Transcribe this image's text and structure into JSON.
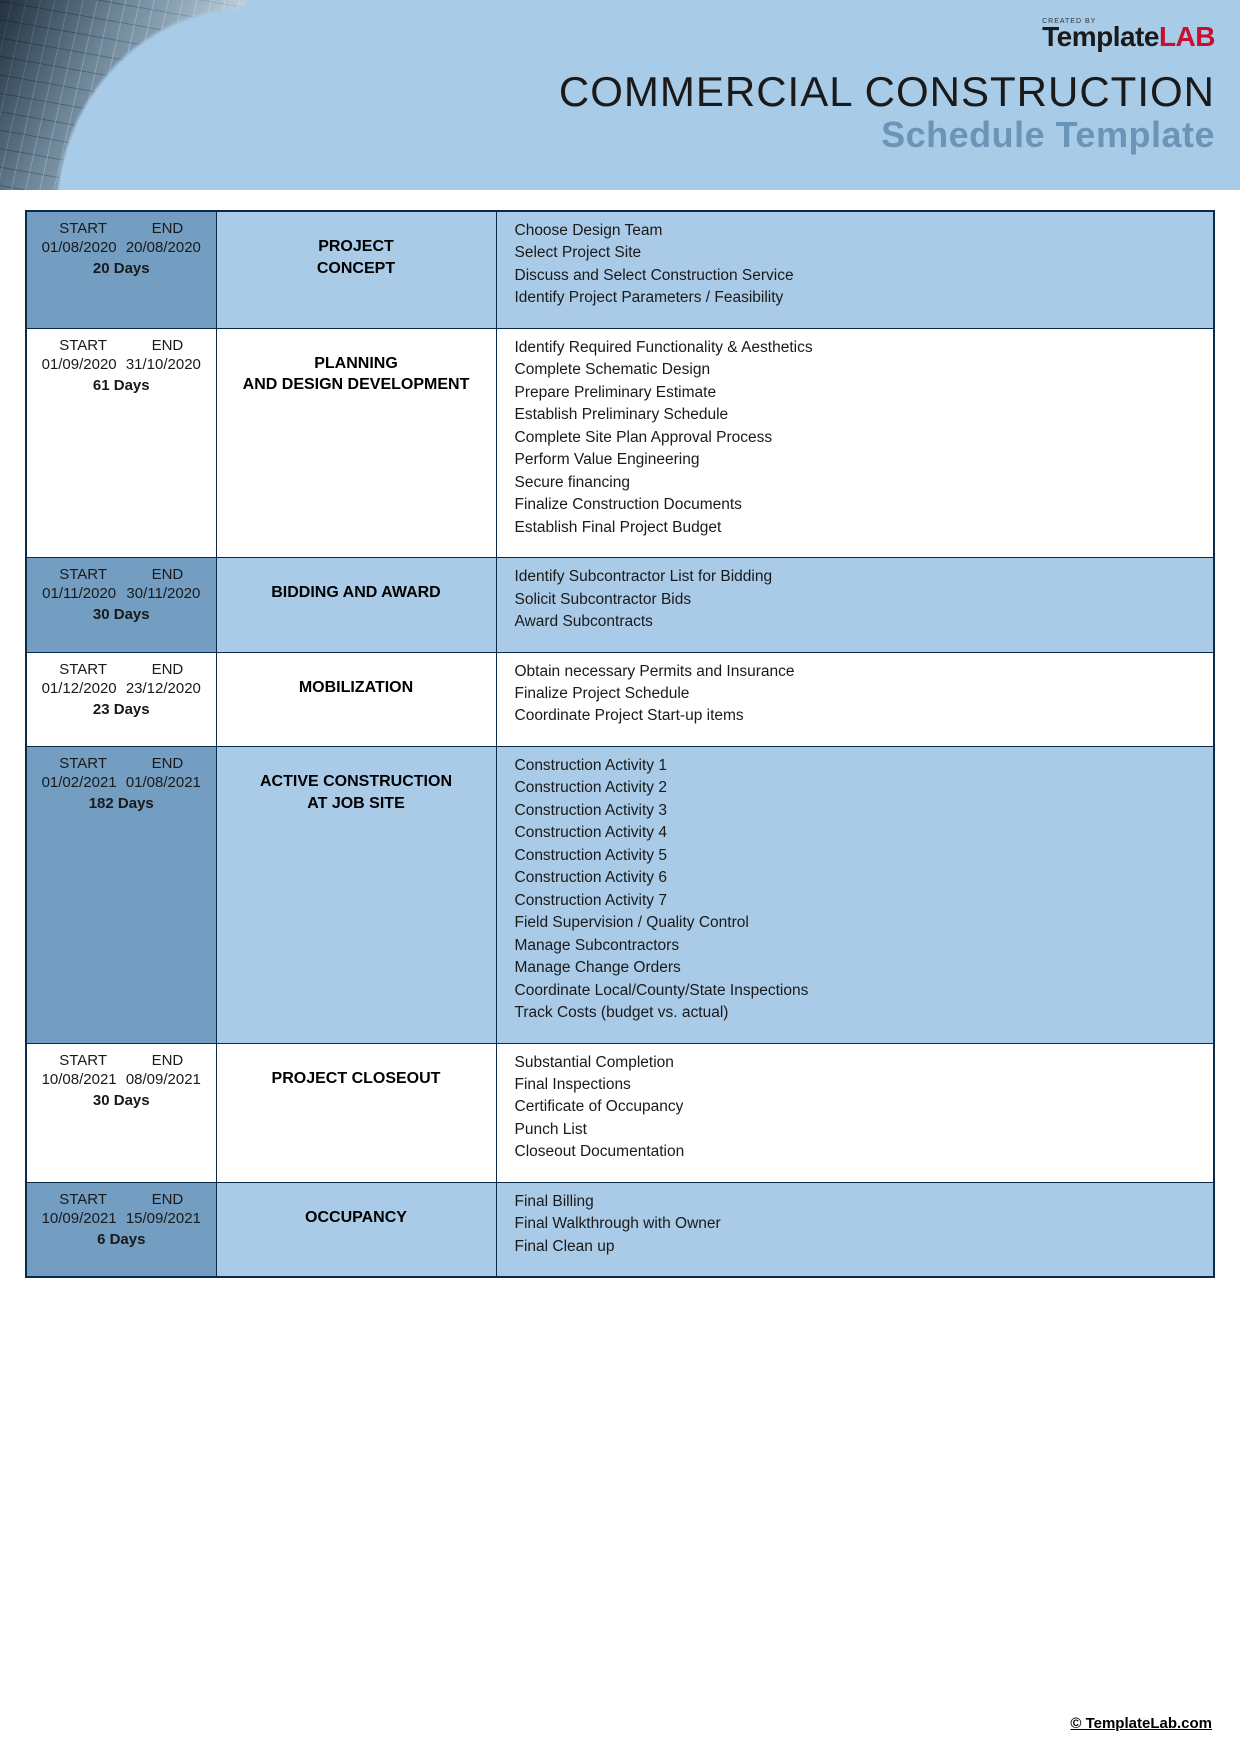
{
  "brand": {
    "created": "CREATED BY",
    "name_a": "Template",
    "name_b": "LAB"
  },
  "title": {
    "line1": "COMMERCIAL CONSTRUCTION",
    "line2": "Schedule Template"
  },
  "labels": {
    "start": "START",
    "end": "END"
  },
  "colors": {
    "header_bg": "#a8cbe8",
    "shade_dates": "#739dc1",
    "shade_cells": "#a9cbe7",
    "border": "#0a2a4a",
    "accent_text": "#6a95b8",
    "brand_red": "#c8102e"
  },
  "phases": [
    {
      "shaded": true,
      "start": "01/08/2020",
      "end": "20/08/2020",
      "days": "20 Days",
      "name": "PROJECT\nCONCEPT",
      "tasks": [
        "Choose Design Team",
        "Select Project Site",
        "Discuss and Select Construction Service",
        "Identify Project Parameters / Feasibility"
      ]
    },
    {
      "shaded": false,
      "start": "01/09/2020",
      "end": "31/10/2020",
      "days": "61 Days",
      "name": "PLANNING\nAND DESIGN DEVELOPMENT",
      "tasks": [
        "Identify Required Functionality & Aesthetics",
        "Complete Schematic Design",
        "Prepare Preliminary Estimate",
        "Establish Preliminary Schedule",
        "Complete Site Plan Approval Process",
        "Perform Value Engineering",
        "Secure financing",
        "Finalize Construction Documents",
        "Establish Final Project Budget"
      ]
    },
    {
      "shaded": true,
      "start": "01/11/2020",
      "end": "30/11/2020",
      "days": "30 Days",
      "name": "BIDDING AND AWARD",
      "tasks": [
        "Identify Subcontractor List for Bidding",
        "Solicit Subcontractor Bids",
        "Award Subcontracts"
      ]
    },
    {
      "shaded": false,
      "start": "01/12/2020",
      "end": "23/12/2020",
      "days": "23 Days",
      "name": "MOBILIZATION",
      "tasks": [
        "Obtain necessary Permits and Insurance",
        "Finalize Project Schedule",
        "Coordinate Project Start-up items"
      ]
    },
    {
      "shaded": true,
      "start": "01/02/2021",
      "end": "01/08/2021",
      "days": "182 Days",
      "name": "ACTIVE CONSTRUCTION\nAT JOB SITE",
      "tasks": [
        "Construction Activity 1",
        "Construction Activity 2",
        "Construction Activity 3",
        "Construction Activity 4",
        "Construction Activity 5",
        "Construction Activity 6",
        "Construction Activity 7",
        "Field Supervision / Quality Control",
        "Manage Subcontractors",
        "Manage Change Orders",
        "Coordinate Local/County/State Inspections",
        "Track Costs (budget vs. actual)"
      ]
    },
    {
      "shaded": false,
      "start": "10/08/2021",
      "end": "08/09/2021",
      "days": "30 Days",
      "name": "PROJECT CLOSEOUT",
      "tasks": [
        "Substantial Completion",
        "Final Inspections",
        "Certificate of Occupancy",
        "Punch List",
        "Closeout Documentation"
      ]
    },
    {
      "shaded": true,
      "start": "10/09/2021",
      "end": "15/09/2021",
      "days": "6 Days",
      "name": "OCCUPANCY",
      "tasks": [
        "Final Billing",
        "Final Walkthrough with Owner",
        "Final Clean up"
      ]
    }
  ],
  "footer": "© TemplateLab.com"
}
